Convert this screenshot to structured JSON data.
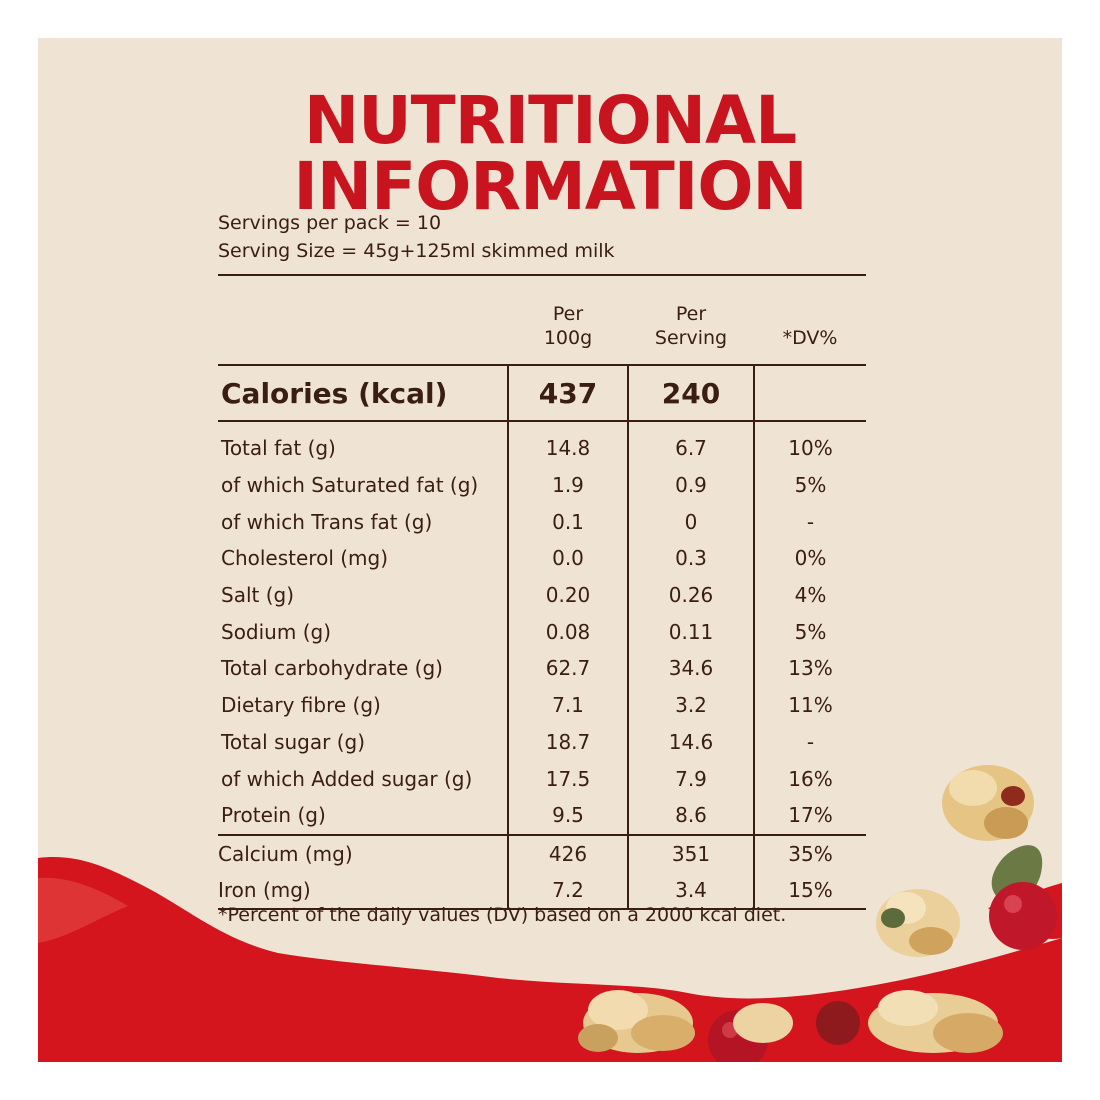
{
  "title": "NUTRITIONAL INFORMATION",
  "servings_per_pack": "Servings per pack = 10",
  "serving_size": "Serving Size = 45g+125ml skimmed milk",
  "table": {
    "headers": {
      "per_100g": [
        "Per",
        "100g"
      ],
      "per_serving": [
        "Per",
        "Serving"
      ],
      "dv": "*DV%"
    },
    "calories": {
      "name": "Calories (kcal)",
      "per_100g": "437",
      "per_serving": "240",
      "dv": ""
    },
    "rows": [
      {
        "name": "Total fat (g)",
        "per_100g": "14.8",
        "per_serving": "6.7",
        "dv": "10%"
      },
      {
        "name": "of which Saturated fat (g)",
        "per_100g": "1.9",
        "per_serving": "0.9",
        "dv": "5%"
      },
      {
        "name": "of which Trans fat (g)",
        "per_100g": "0.1",
        "per_serving": "0",
        "dv": "-"
      },
      {
        "name": "Cholesterol (mg)",
        "per_100g": "0.0",
        "per_serving": "0.3",
        "dv": "0%"
      },
      {
        "name": "Salt (g)",
        "per_100g": "0.20",
        "per_serving": "0.26",
        "dv": "4%"
      },
      {
        "name": "Sodium (g)",
        "per_100g": "0.08",
        "per_serving": "0.11",
        "dv": "5%"
      },
      {
        "name": "Total carbohydrate (g)",
        "per_100g": "62.7",
        "per_serving": "34.6",
        "dv": "13%"
      },
      {
        "name": "Dietary fibre (g)",
        "per_100g": "7.1",
        "per_serving": "3.2",
        "dv": "11%"
      },
      {
        "name": "Total sugar (g)",
        "per_100g": "18.7",
        "per_serving": "14.6",
        "dv": "-"
      },
      {
        "name": "of which Added sugar (g)",
        "per_100g": "17.5",
        "per_serving": "7.9",
        "dv": "16%"
      },
      {
        "name": "Protein (g)",
        "per_100g": "9.5",
        "per_serving": "8.6",
        "dv": "17%"
      }
    ],
    "minerals": [
      {
        "name": "Calcium (mg)",
        "per_100g": "426",
        "per_serving": "351",
        "dv": "35%"
      },
      {
        "name": "Iron (mg)",
        "per_100g": "7.2",
        "per_serving": "3.4",
        "dv": "15%"
      }
    ]
  },
  "footnote": "*Percent of the daily values (DV) based on a 2000 kcal diet.",
  "colors": {
    "title_red": "#c8141e",
    "text_brown": "#3a1d14",
    "background": "#efe4d4",
    "splash_red": "#d4151d"
  },
  "decoration": [
    "granola-clusters",
    "cranberries",
    "pumpkin-seed",
    "red-splash"
  ]
}
